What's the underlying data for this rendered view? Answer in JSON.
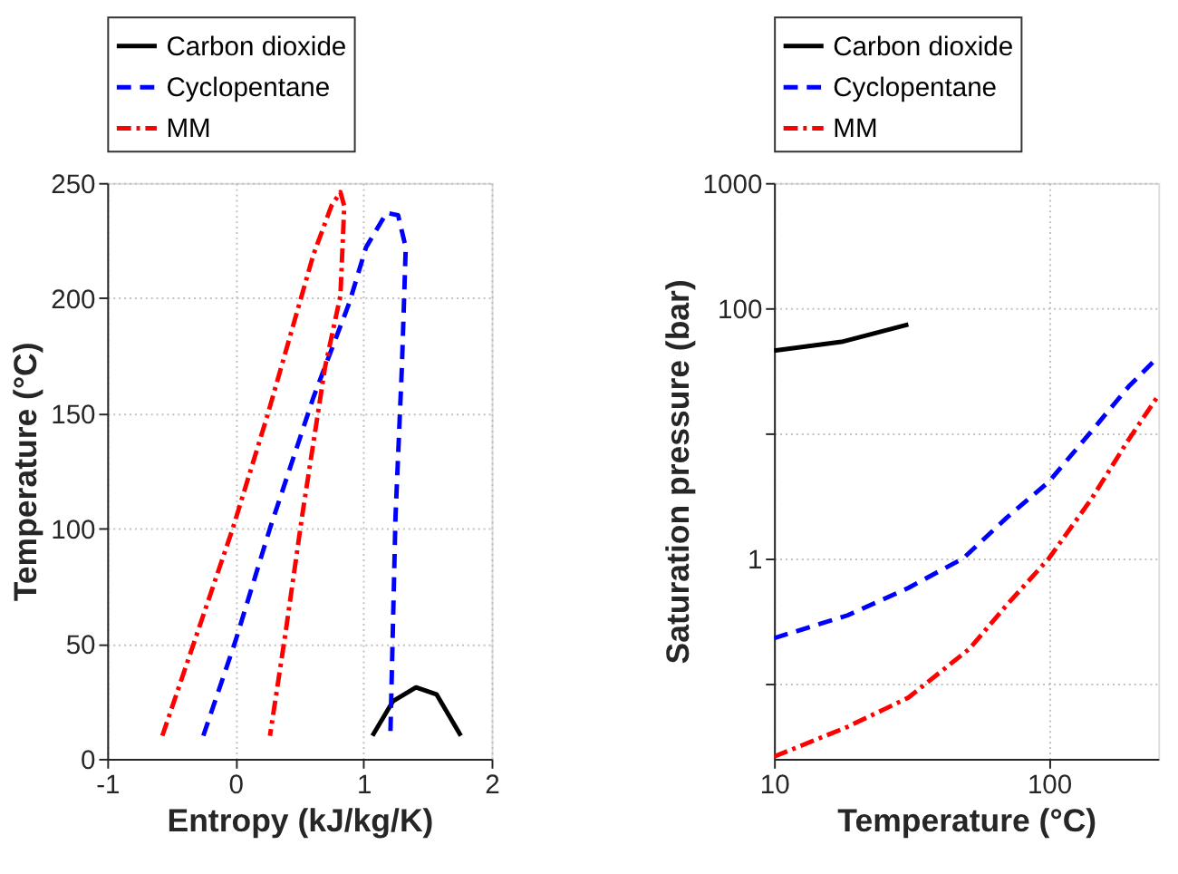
{
  "chart_data": [
    {
      "type": "line",
      "xlabel": "Entropy (kJ/kg/K)",
      "ylabel": "Temperature (°C)",
      "xlim": [
        -1,
        2
      ],
      "ylim": [
        0,
        250
      ],
      "xticks": [
        -1,
        0,
        1,
        2
      ],
      "yticks": [
        0,
        50,
        100,
        150,
        200,
        250
      ],
      "grid": true,
      "legend": "top",
      "series": [
        {
          "name": "Carbon dioxide",
          "color": "#000000",
          "line_style": "solid",
          "x": [
            1.07,
            1.23,
            1.41,
            1.57,
            1.76
          ],
          "values": [
            10,
            25,
            31,
            28,
            10
          ]
        },
        {
          "name": "Cyclopentane",
          "color": "#0000ff",
          "line_style": "dashed",
          "x": [
            -0.25,
            0,
            0.27,
            0.61,
            0.89,
            1.02,
            1.18,
            1.27,
            1.33,
            1.3,
            1.25,
            1.21
          ],
          "values": [
            10,
            51,
            100,
            157,
            198,
            222,
            237,
            236,
            222,
            170,
            105,
            10
          ]
        },
        {
          "name": "MM",
          "color": "#ff0000",
          "line_style": "dashdot",
          "x": [
            -0.57,
            -0.02,
            0.25,
            0.61,
            0.75,
            0.82,
            0.85,
            0.82,
            0.7,
            0.52,
            0.39,
            0.27
          ],
          "values": [
            10,
            100,
            149,
            219,
            240,
            246,
            240,
            201,
            170,
            105,
            54,
            10
          ]
        }
      ]
    },
    {
      "type": "line",
      "xlabel": "Temperature (°C)",
      "ylabel": "Saturation pressure (bar)",
      "log": "xy",
      "xlim": [
        10,
        250
      ],
      "ylim": [
        0.025,
        1000
      ],
      "xticks": [
        10,
        100
      ],
      "yticks": [
        {
          "value": 0.1,
          "label": null
        },
        1,
        {
          "value": 10,
          "label": null
        },
        100,
        1000
      ],
      "grid": true,
      "legend": "top",
      "series": [
        {
          "name": "Carbon dioxide",
          "color": "#000000",
          "line_style": "solid",
          "x": [
            10,
            17.6,
            30.8
          ],
          "values": [
            45.6,
            53.7,
            74
          ]
        },
        {
          "name": "Cyclopentane",
          "color": "#0000ff",
          "line_style": "dashed",
          "x": [
            10,
            18.5,
            30.8,
            48.8,
            70,
            100,
            143,
            195,
            250
          ],
          "values": [
            0.23,
            0.35,
            0.58,
            1.0,
            2.1,
            4.1,
            10.4,
            23.6,
            40.8
          ]
        },
        {
          "name": "MM",
          "color": "#ff0000",
          "line_style": "dashdot",
          "x": [
            10,
            18.5,
            30.8,
            51.5,
            70,
            100,
            143,
            195,
            250
          ],
          "values": [
            0.026,
            0.045,
            0.077,
            0.19,
            0.42,
            1.0,
            3.0,
            8.9,
            20
          ]
        }
      ]
    }
  ]
}
